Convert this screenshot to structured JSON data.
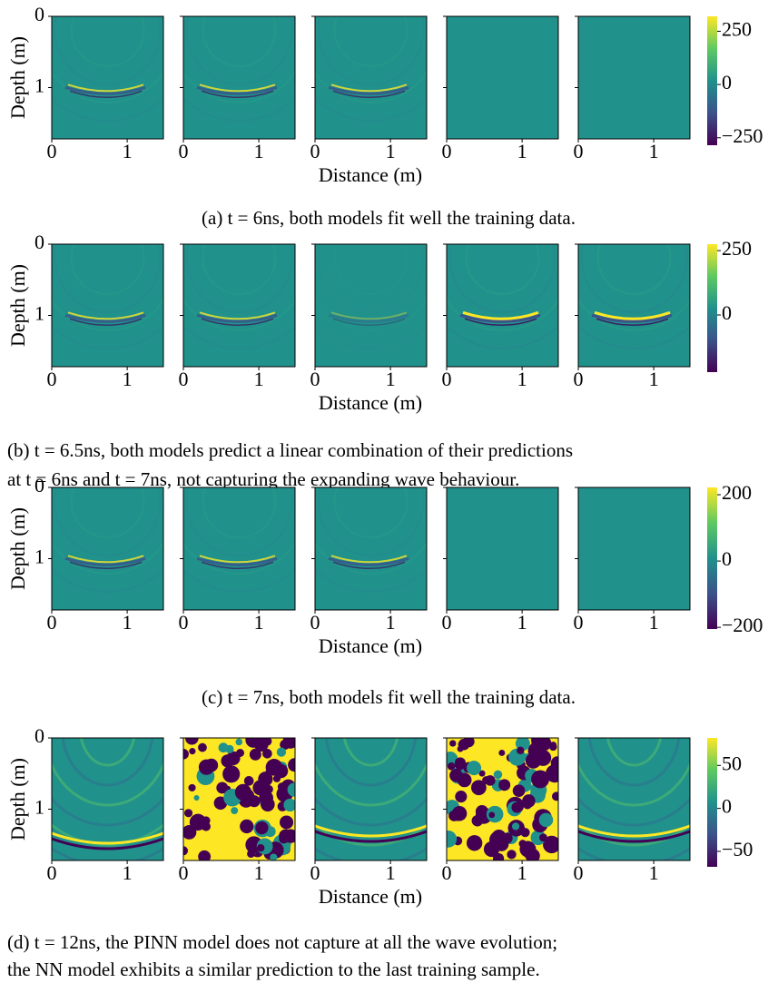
{
  "panels": [
    {
      "y_label": "Depth (m)",
      "x_label": "Distance (m)",
      "ylim": [
        0,
        1.72
      ],
      "xlim": [
        0,
        1.48
      ],
      "yticks": [
        0,
        1
      ],
      "xticks": [
        0,
        1
      ],
      "colorbar": {
        "lim": [
          -285,
          320
        ],
        "ticks": [
          250,
          0,
          {
            "value": -250,
            "label": "−250"
          }
        ]
      },
      "caption": [
        "(a) t = 6ns, both models fit well the training data."
      ]
    },
    {
      "y_label": "Depth (m)",
      "x_label": "Distance (m)",
      "ylim": [
        0,
        1.72
      ],
      "xlim": [
        0,
        1.48
      ],
      "yticks": [
        0,
        1
      ],
      "xticks": [
        0,
        1
      ],
      "colorbar": {
        "lim": [
          -222,
          275
        ],
        "ticks": [
          250,
          0
        ]
      },
      "caption": [
        "(b) t = 6.5ns, both models predict a linear combination of their predictions",
        "at t = 6ns and t = 7ns, not capturing the expanding wave behaviour."
      ]
    },
    {
      "y_label": "Depth (m)",
      "x_label": "Distance (m)",
      "ylim": [
        0,
        1.72
      ],
      "xlim": [
        0,
        1.48
      ],
      "yticks": [
        0,
        1
      ],
      "xticks": [
        0,
        1
      ],
      "colorbar": {
        "lim": [
          -205,
          222
        ],
        "ticks": [
          200,
          0,
          {
            "value": -200,
            "label": "−200"
          }
        ]
      },
      "caption": [
        "(c) t = 7ns, both models fit well the training data."
      ]
    },
    {
      "y_label": "Depth (m)",
      "x_label": "Distance (m)",
      "ylim": [
        0,
        1.72
      ],
      "xlim": [
        0,
        1.48
      ],
      "yticks": [
        0,
        1
      ],
      "xticks": [
        0,
        1
      ],
      "colorbar": {
        "lim": [
          -68,
          82
        ],
        "ticks": [
          50,
          0,
          {
            "value": -50,
            "label": "−50"
          }
        ]
      },
      "caption": [
        "(d) t = 12ns, the PINN model does not capture at all the wave evolution;",
        "the NN model exhibits a similar prediction to the last training sample."
      ]
    }
  ]
}
